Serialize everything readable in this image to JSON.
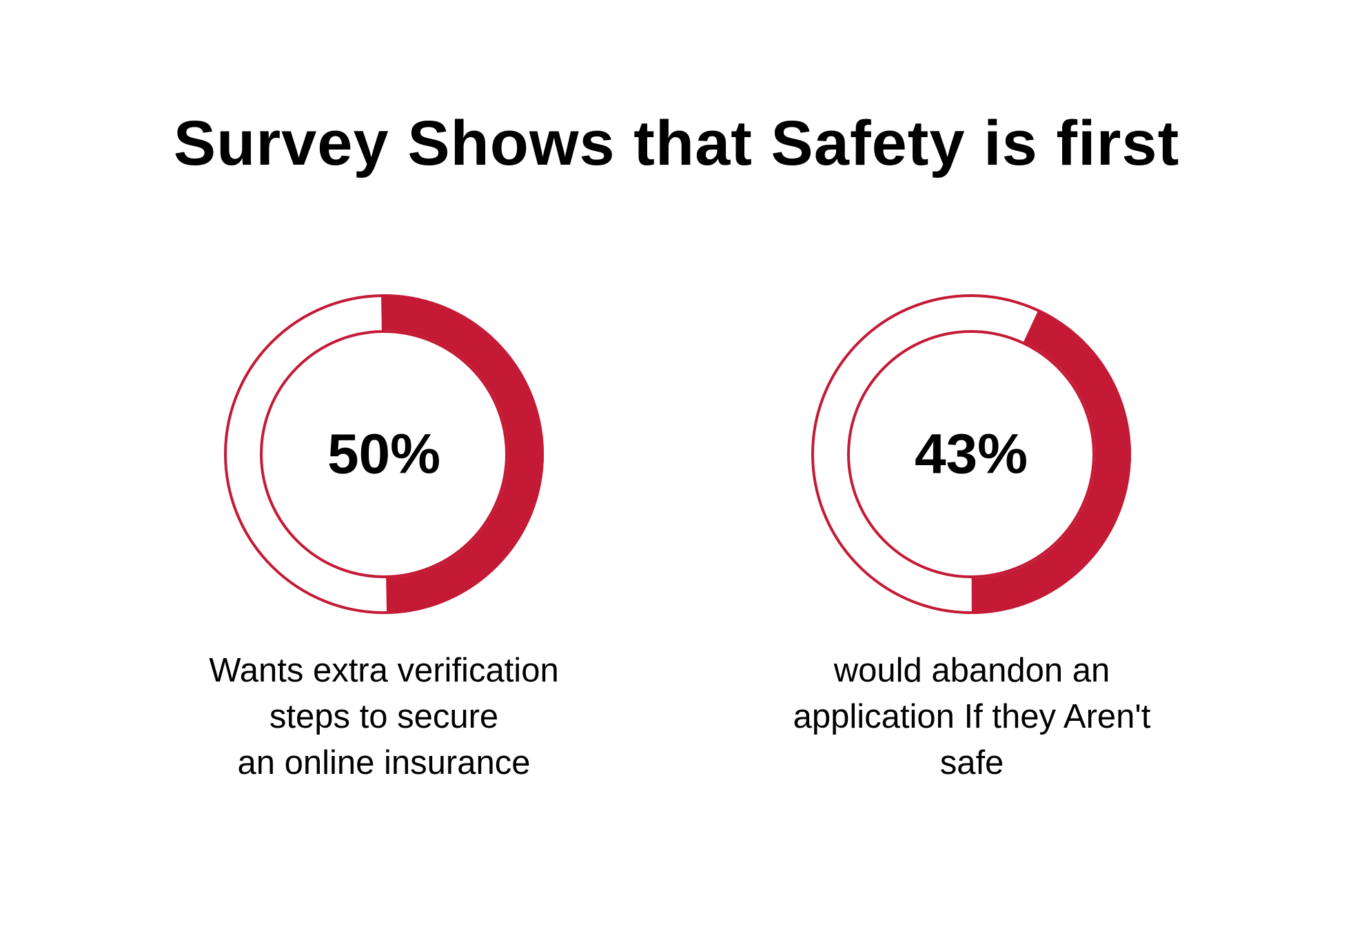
{
  "title": "Survey Shows that Safety is first",
  "colors": {
    "accent": "#C41A35",
    "text": "#000000",
    "background": "#ffffff"
  },
  "chart_data": {
    "type": "pie",
    "title": "Survey Shows that Safety is first",
    "items": [
      {
        "value": 50,
        "value_label": "50%",
        "label_lines": [
          "Wants extra verification",
          "steps to secure",
          "an online insurance"
        ]
      },
      {
        "value": 43,
        "value_label": "43%",
        "label_lines": [
          "would abandon an",
          "application If they Aren't",
          "safe"
        ]
      }
    ]
  }
}
